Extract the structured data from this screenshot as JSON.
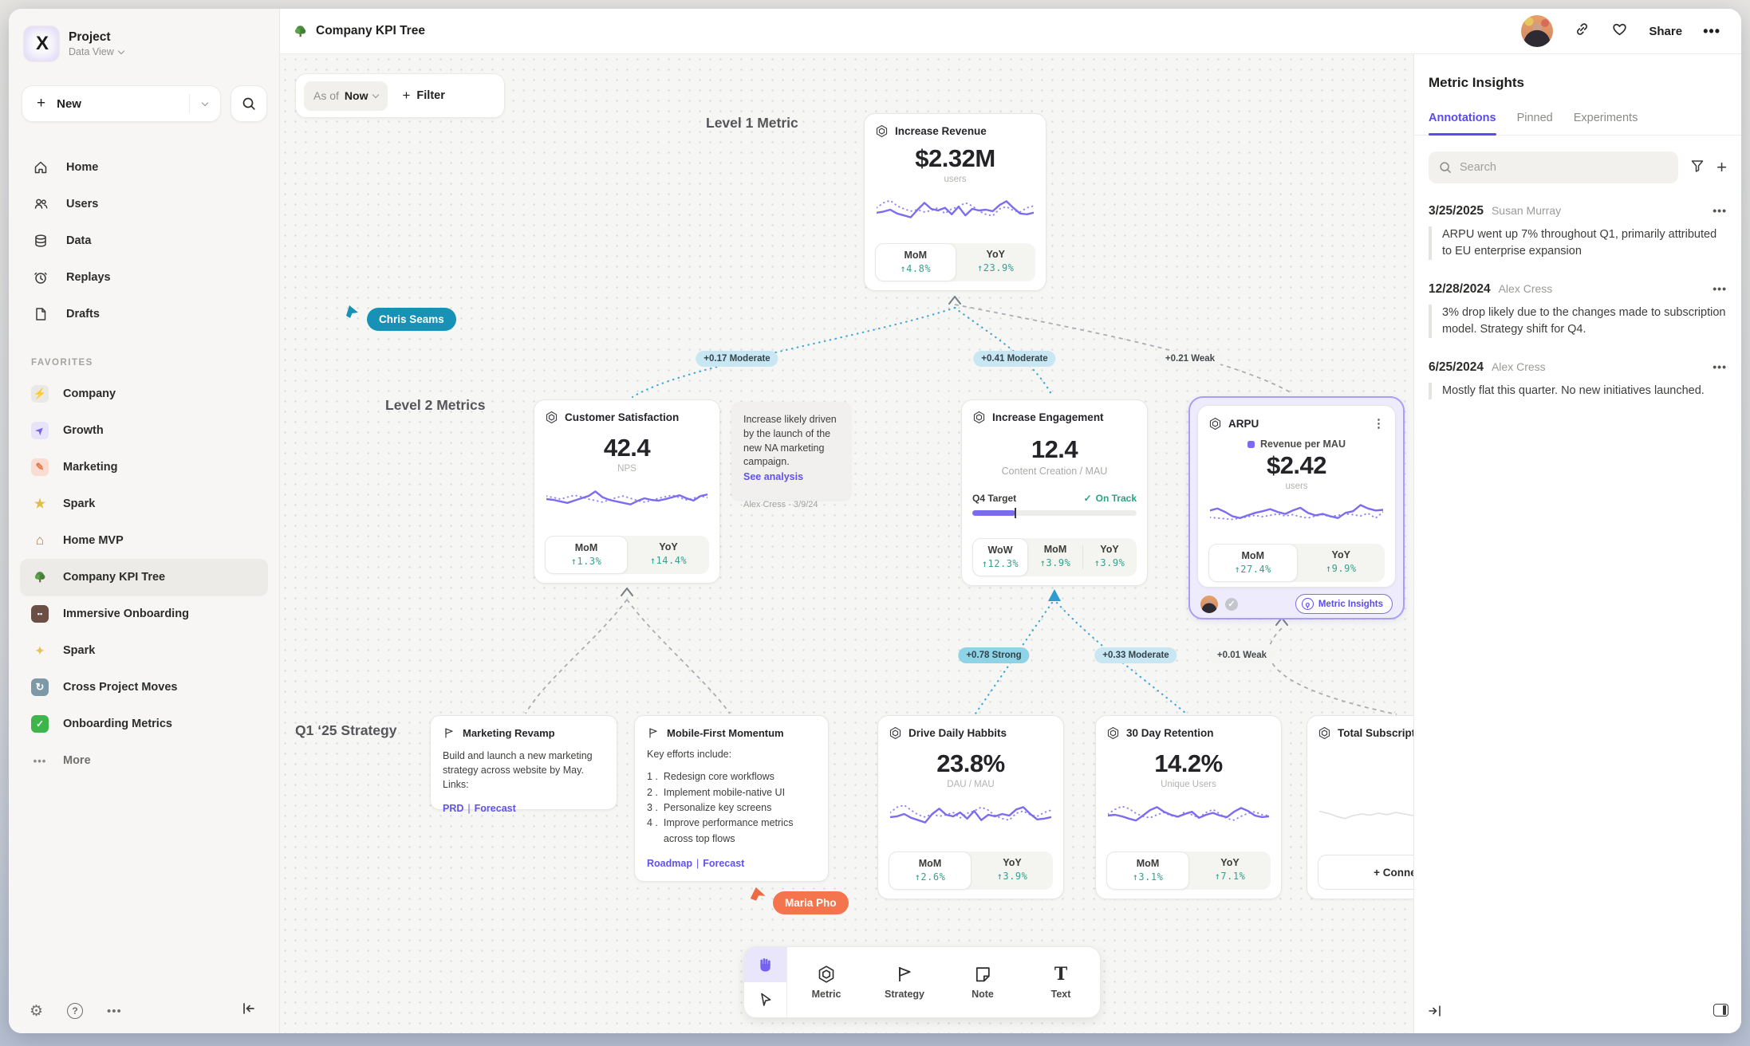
{
  "colors": {
    "accent": "#5b4bee",
    "delta_green": "#37a08d",
    "cursor_teal": "#1791b5",
    "cursor_orange": "#f3744d",
    "edge_moderate": "#c9e6f3",
    "edge_strong": "#8ed4e6"
  },
  "sidebar": {
    "project_name": "Project",
    "project_view": "Data View",
    "new_label": "New",
    "nav": [
      {
        "label": "Home"
      },
      {
        "label": "Users"
      },
      {
        "label": "Data"
      },
      {
        "label": "Replays"
      },
      {
        "label": "Drafts"
      }
    ],
    "favorites_label": "FAVORITES",
    "favorites": [
      {
        "label": "Company"
      },
      {
        "label": "Growth"
      },
      {
        "label": "Marketing"
      },
      {
        "label": "Spark"
      },
      {
        "label": "Home MVP"
      },
      {
        "label": "Company KPI Tree"
      },
      {
        "label": "Immersive Onboarding"
      },
      {
        "label": "Spark"
      },
      {
        "label": "Cross Project Moves"
      },
      {
        "label": "Onboarding Metrics"
      }
    ],
    "more_label": "More"
  },
  "topbar": {
    "title": "Company KPI Tree",
    "share_label": "Share"
  },
  "canvas": {
    "filter_bar": {
      "as_of": "As of",
      "value": "Now",
      "filter_label": "Filter"
    },
    "labels": {
      "level1": "Level 1 Metric",
      "level2": "Level 2 Metrics",
      "q1": "Q1 ‘25 Strategy"
    },
    "cursors": {
      "chris": "Chris Seams",
      "maria": "Maria Pho"
    },
    "edge_labels": [
      {
        "text": "+0.17 Moderate"
      },
      {
        "text": "+0.41 Moderate"
      },
      {
        "text": "+0.21 Weak"
      },
      {
        "text": "+0.78 Strong"
      },
      {
        "text": "+0.33 Moderate"
      },
      {
        "text": "+0.01 Weak"
      }
    ],
    "cards": {
      "increase_revenue": {
        "title": "Increase Revenue",
        "value": "$2.32M",
        "unit": "users",
        "metrics": [
          {
            "label": "MoM",
            "value": "↑4.8%"
          },
          {
            "label": "YoY",
            "value": "↑23.9%"
          }
        ],
        "spark": {
          "solid": [
            42,
            45,
            50,
            40,
            35,
            30,
            50,
            68,
            52,
            48,
            55,
            38,
            58,
            35,
            52,
            48,
            50,
            46,
            62,
            72,
            55,
            40,
            38,
            42
          ],
          "dotted": [
            55,
            68,
            74,
            60,
            52,
            46,
            50,
            44,
            48,
            55,
            40,
            52,
            58,
            68,
            60,
            46,
            38,
            34,
            52,
            58,
            48,
            44,
            55,
            60
          ]
        }
      },
      "customer_satisfaction": {
        "title": "Customer Satisfaction",
        "value": "42.4",
        "unit": "NPS",
        "metrics": [
          {
            "label": "MoM",
            "value": "↑1.3%"
          },
          {
            "label": "YoY",
            "value": "↑14.4%"
          }
        ],
        "spark": {
          "solid": [
            50,
            48,
            44,
            40,
            46,
            52,
            58,
            70,
            55,
            48,
            44,
            40,
            36,
            45,
            52,
            48,
            46,
            50,
            55,
            60,
            52,
            46,
            58,
            62
          ],
          "dotted": [
            58,
            54,
            50,
            55,
            60,
            56,
            50,
            46,
            42,
            48,
            54,
            58,
            52,
            46,
            42,
            46,
            52,
            56,
            60,
            54,
            48,
            52,
            58,
            54
          ]
        }
      },
      "note": {
        "text": "Increase likely driven by the launch of the new NA marketing campaign.",
        "link_label": "See analysis",
        "byline": "Alex Cress - 3/9/24"
      },
      "increase_engagement": {
        "title": "Increase Engagement",
        "value": "12.4",
        "unit": "Content Creation / MAU",
        "target_label": "Q4 Target",
        "status_label": "On Track",
        "progress_pct": 26,
        "metrics": [
          {
            "label": "WoW",
            "value": "↑12.3%"
          },
          {
            "label": "MoM",
            "value": "↑3.9%"
          },
          {
            "label": "YoY",
            "value": "↑3.9%"
          }
        ]
      },
      "arpu": {
        "title": "ARPU",
        "legend": "Revenue per MAU",
        "value": "$2.42",
        "unit": "users",
        "insights_label": "Metric Insights",
        "metrics": [
          {
            "label": "MoM",
            "value": "↑27.4%"
          },
          {
            "label": "YoY",
            "value": "↑9.9%"
          }
        ],
        "spark": {
          "solid": [
            62,
            68,
            58,
            45,
            40,
            48,
            55,
            60,
            66,
            58,
            52,
            62,
            70,
            55,
            48,
            52,
            45,
            40,
            55,
            60,
            78,
            68,
            62,
            64
          ],
          "dotted": [
            42,
            40,
            38,
            36,
            40,
            44,
            48,
            44,
            48,
            52,
            46,
            50,
            44,
            40,
            46,
            50,
            44,
            48,
            52,
            50,
            46,
            54,
            40,
            58
          ]
        }
      },
      "marketing_revamp": {
        "title": "Marketing Revamp",
        "body": "Build and launch a new marketing strategy across website by May. Links:",
        "links": [
          {
            "label": "PRD"
          },
          {
            "label": "Forecast"
          }
        ]
      },
      "mobile_first": {
        "title": "Mobile-First Momentum",
        "intro": "Key efforts include:",
        "items": [
          "Redesign core workflows",
          "Implement mobile-native UI",
          "Personalize key screens",
          "Improve performance metrics across top flows"
        ],
        "links": [
          {
            "label": "Roadmap"
          },
          {
            "label": "Forecast"
          }
        ]
      },
      "drive_daily_habits": {
        "title": "Drive Daily Habbits",
        "value": "23.8%",
        "unit": "DAU / MAU",
        "metrics": [
          {
            "label": "MoM",
            "value": "↑2.6%"
          },
          {
            "label": "YoY",
            "value": "↑3.9%"
          }
        ],
        "spark": {
          "solid": [
            44,
            46,
            52,
            42,
            36,
            30,
            52,
            66,
            50,
            46,
            56,
            40,
            60,
            36,
            50,
            46,
            52,
            48,
            64,
            70,
            52,
            38,
            40,
            44
          ],
          "dotted": [
            56,
            70,
            75,
            62,
            50,
            44,
            52,
            46,
            50,
            56,
            42,
            54,
            60,
            70,
            62,
            48,
            40,
            36,
            54,
            60,
            50,
            46,
            56,
            62
          ]
        }
      },
      "retention_30d": {
        "title": "30 Day Retention",
        "value": "14.2%",
        "unit": "Unique Users",
        "metrics": [
          {
            "label": "MoM",
            "value": "↑3.1%"
          },
          {
            "label": "YoY",
            "value": "↑7.1%"
          }
        ],
        "spark": {
          "solid": [
            48,
            50,
            46,
            40,
            35,
            48,
            62,
            70,
            58,
            50,
            45,
            52,
            58,
            42,
            50,
            55,
            48,
            44,
            58,
            68,
            60,
            48,
            44,
            46
          ],
          "dotted": [
            52,
            64,
            72,
            66,
            54,
            46,
            42,
            50,
            56,
            48,
            44,
            58,
            50,
            42,
            56,
            64,
            52,
            40,
            36,
            46,
            54,
            58,
            50,
            48
          ]
        }
      },
      "total_subscriptions": {
        "title": "Total Subscript",
        "connect_label": "+ Connect",
        "spark": {
          "solid": [
            55,
            50,
            42,
            36,
            44,
            48,
            45,
            50,
            46,
            52,
            48,
            44,
            50,
            56,
            48,
            60,
            52,
            44,
            40,
            46
          ]
        }
      }
    },
    "toolbar": {
      "tools": [
        {
          "label": "Metric"
        },
        {
          "label": "Strategy"
        },
        {
          "label": "Note"
        },
        {
          "label": "Text"
        }
      ]
    }
  },
  "right_panel": {
    "title": "Metric Insights",
    "tabs": [
      {
        "label": "Annotations"
      },
      {
        "label": "Pinned"
      },
      {
        "label": "Experiments"
      }
    ],
    "search_placeholder": "Search",
    "annotations": [
      {
        "date": "3/25/2025",
        "author": "Susan Murray",
        "text": "ARPU went up 7% throughout Q1, primarily attributed to EU enterprise expansion"
      },
      {
        "date": "12/28/2024",
        "author": "Alex Cress",
        "text": "3% drop likely due to the changes made to subscription model. Strategy shift for Q4."
      },
      {
        "date": "6/25/2024",
        "author": "Alex Cress",
        "text": "Mostly flat this quarter. No new initiatives launched."
      }
    ]
  }
}
